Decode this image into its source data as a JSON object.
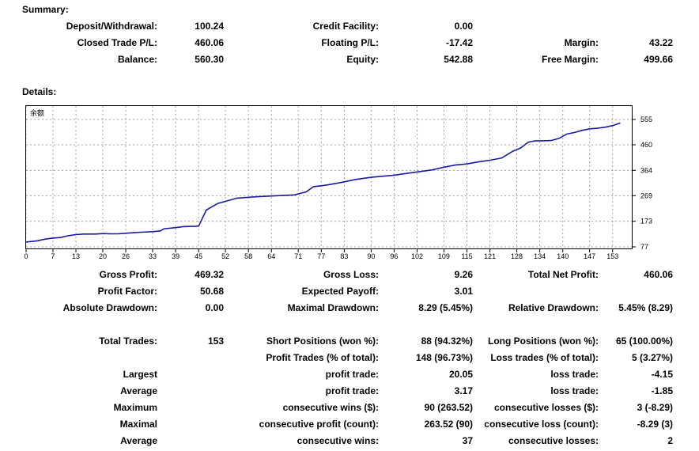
{
  "summary": {
    "title": "Summary:",
    "rows": [
      [
        "Deposit/Withdrawal:",
        "100.24",
        "Credit Facility:",
        "0.00",
        "",
        ""
      ],
      [
        "Closed Trade P/L:",
        "460.06",
        "Floating P/L:",
        "-17.42",
        "Margin:",
        "43.22"
      ],
      [
        "Balance:",
        "560.30",
        "Equity:",
        "542.88",
        "Free Margin:",
        "499.66"
      ]
    ]
  },
  "details": {
    "title": "Details:"
  },
  "chart_data": {
    "type": "line",
    "title": "余额",
    "line_color": "#1a1aa6",
    "grid": true,
    "ylim": [
      77,
      555
    ],
    "xlim": [
      0,
      158
    ],
    "y_ticks": [
      "77",
      "173",
      "269",
      "364",
      "460",
      "555"
    ],
    "x_ticks": [
      "0",
      "7",
      "13",
      "20",
      "26",
      "33",
      "39",
      "45",
      "52",
      "58",
      "64",
      "71",
      "77",
      "83",
      "90",
      "96",
      "102",
      "109",
      "115",
      "121",
      "128",
      "134",
      "140",
      "147",
      "153"
    ],
    "series": [
      {
        "x": [
          0,
          3,
          5,
          7,
          9,
          11,
          13,
          15,
          18,
          20,
          22,
          24,
          26,
          28,
          30,
          33,
          35,
          36,
          39,
          41,
          43,
          44,
          45,
          47,
          50,
          53,
          55,
          60,
          64,
          70,
          73,
          75,
          78,
          82,
          86,
          90,
          96,
          100,
          103,
          106,
          109,
          112,
          115,
          118,
          121,
          124,
          127,
          129,
          131,
          133,
          135,
          137,
          139,
          141,
          143,
          145,
          147,
          149,
          151,
          153,
          155
        ],
        "y": [
          95,
          100,
          106,
          110,
          112,
          119,
          123,
          125,
          125,
          127,
          126,
          126,
          128,
          130,
          132,
          134,
          137,
          145,
          149,
          153,
          154,
          154,
          155,
          215,
          240,
          252,
          260,
          265,
          268,
          272,
          283,
          303,
          308,
          318,
          330,
          338,
          346,
          354,
          360,
          366,
          376,
          384,
          388,
          396,
          402,
          410,
          436,
          448,
          470,
          475,
          475,
          476,
          484,
          500,
          506,
          514,
          520,
          522,
          526,
          532,
          542
        ]
      }
    ]
  },
  "stats": {
    "rows": [
      [
        "Gross Profit:",
        "469.32",
        "Gross Loss:",
        "9.26",
        "Total Net Profit:",
        "460.06"
      ],
      [
        "Profit Factor:",
        "50.68",
        "Expected Payoff:",
        "3.01",
        "",
        ""
      ],
      [
        "Absolute Drawdown:",
        "0.00",
        "Maximal Drawdown:",
        "8.29 (5.45%)",
        "Relative Drawdown:",
        "5.45% (8.29)"
      ],
      [
        "Total Trades:",
        "153",
        "Short Positions (won %):",
        "88 (94.32%)",
        "Long Positions (won %):",
        "65 (100.00%)"
      ],
      [
        "",
        "",
        "Profit Trades (% of total):",
        "148 (96.73%)",
        "Loss trades (% of total):",
        "5 (3.27%)"
      ],
      [
        "Largest",
        "",
        "profit trade:",
        "20.05",
        "loss trade:",
        "-4.15"
      ],
      [
        "Average",
        "",
        "profit trade:",
        "3.17",
        "loss trade:",
        "-1.85"
      ],
      [
        "Maximum",
        "",
        "consecutive wins ($):",
        "90 (263.52)",
        "consecutive losses ($):",
        "3 (-8.29)"
      ],
      [
        "Maximal",
        "",
        "consecutive profit (count):",
        "263.52 (90)",
        "consecutive loss (count):",
        "-8.29 (3)"
      ],
      [
        "Average",
        "",
        "consecutive wins:",
        "37",
        "consecutive losses:",
        "2"
      ]
    ]
  }
}
